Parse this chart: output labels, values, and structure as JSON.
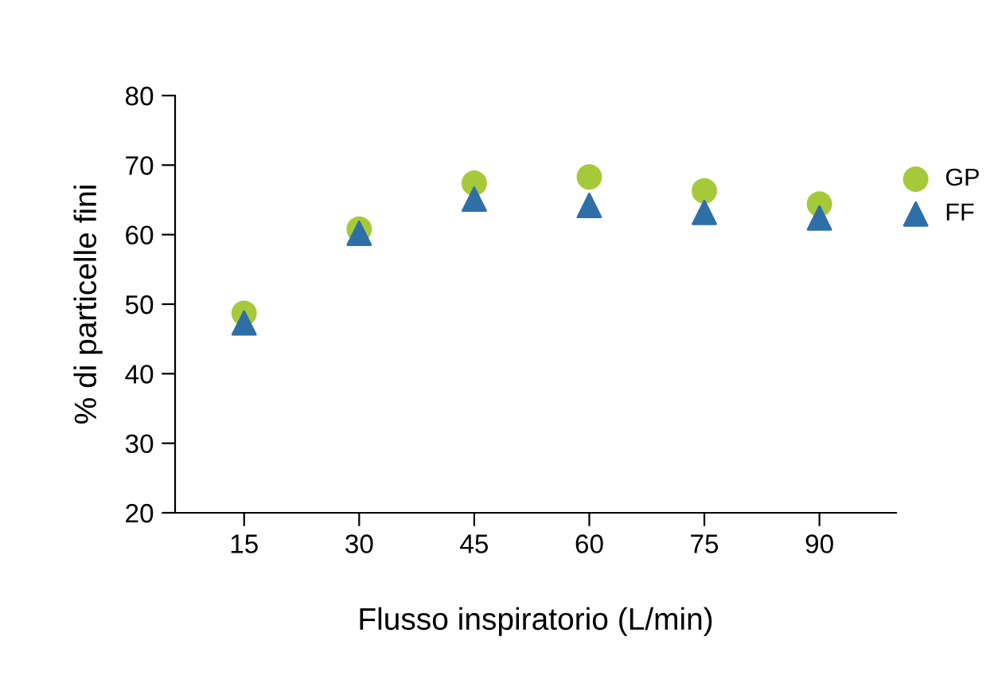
{
  "chart_data": {
    "type": "scatter",
    "xlabel": "Flusso inspiratorio (L/min)",
    "ylabel": "% di particelle fini",
    "x": [
      15,
      30,
      45,
      60,
      75,
      90
    ],
    "series": [
      {
        "name": "GP",
        "color": "#a6c93a",
        "marker": "circle",
        "values": [
          48.7,
          60.8,
          67.4,
          68.3,
          66.3,
          64.4
        ]
      },
      {
        "name": "FF",
        "color": "#2f6fa8",
        "marker": "triangle",
        "values": [
          47.3,
          60.2,
          65.1,
          64.2,
          63.2,
          62.4
        ]
      }
    ],
    "xlim": [
      6,
      100
    ],
    "xticks": [
      15,
      30,
      45,
      60,
      75,
      90
    ],
    "ylim": [
      20,
      80
    ],
    "yticks": [
      20,
      30,
      40,
      50,
      60,
      70,
      80
    ],
    "grid": false,
    "legend": "top right"
  }
}
